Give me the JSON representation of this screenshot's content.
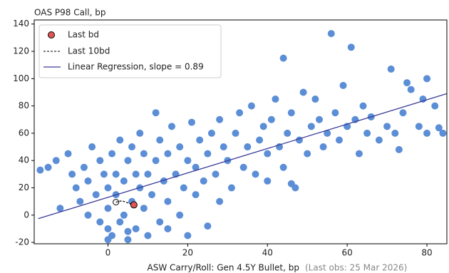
{
  "chart_data": {
    "type": "scatter",
    "title": "OAS P98 Call, bp",
    "x_label": "ASW Carry/Roll: Gen 4.5Y Bullet, bp",
    "note": "(Last obs: 25 Mar 2026)",
    "color": "#5b8ed6",
    "x": [
      -17,
      -15,
      -13,
      -12,
      -10,
      -9,
      -8,
      -7,
      -6,
      -5,
      -5,
      -4,
      -3,
      -2,
      -2,
      -1,
      0,
      0,
      0,
      1,
      1,
      2,
      2,
      3,
      3,
      4,
      4,
      5,
      5,
      6,
      6,
      7,
      7,
      8,
      8,
      9,
      9,
      10,
      10,
      11,
      12,
      12,
      13,
      13,
      14,
      15,
      15,
      16,
      17,
      18,
      18,
      19,
      20,
      21,
      22,
      22,
      23,
      24,
      25,
      26,
      27,
      28,
      28,
      29,
      30,
      31,
      32,
      33,
      34,
      35,
      36,
      37,
      38,
      39,
      40,
      40,
      41,
      42,
      43,
      44,
      44,
      45,
      46,
      47,
      48,
      49,
      50,
      51,
      52,
      53,
      54,
      55,
      56,
      57,
      58,
      59,
      60,
      61,
      62,
      63,
      64,
      65,
      66,
      68,
      70,
      71,
      72,
      73,
      74,
      75,
      76,
      78,
      79,
      80,
      82,
      83,
      84,
      80,
      0,
      5,
      15,
      25,
      46,
      20
    ],
    "values": [
      33,
      35,
      40,
      5,
      45,
      30,
      20,
      10,
      35,
      0,
      25,
      50,
      15,
      -5,
      40,
      30,
      5,
      20,
      -10,
      45,
      -15,
      15,
      30,
      -5,
      55,
      25,
      0,
      40,
      -18,
      10,
      50,
      -10,
      30,
      20,
      60,
      5,
      45,
      -15,
      30,
      15,
      75,
      40,
      -5,
      55,
      25,
      10,
      45,
      65,
      30,
      0,
      50,
      20,
      40,
      68,
      15,
      35,
      55,
      25,
      45,
      60,
      30,
      70,
      10,
      50,
      40,
      20,
      60,
      75,
      35,
      50,
      80,
      30,
      55,
      65,
      45,
      25,
      70,
      85,
      50,
      115,
      35,
      60,
      75,
      20,
      55,
      90,
      45,
      65,
      85,
      70,
      50,
      60,
      133,
      75,
      55,
      95,
      65,
      123,
      70,
      45,
      80,
      60,
      72,
      55,
      65,
      107,
      60,
      48,
      75,
      97,
      92,
      65,
      85,
      60,
      80,
      64,
      60,
      100,
      -18,
      -12,
      -10,
      -8,
      23,
      -15
    ],
    "last_bd": {
      "name": "Last bd",
      "x": 6.5,
      "y": 7.5,
      "color": "#e05555"
    },
    "last_10bd": {
      "name": "Last 10bd",
      "x": [
        2,
        3.5,
        5,
        6.5
      ],
      "y": [
        9.5,
        10.5,
        9,
        7.5
      ]
    },
    "regression": {
      "name": "Linear Regression, slope = 0.89",
      "x": [
        -17.5,
        85
      ],
      "y": [
        -2.6,
        89
      ],
      "color": "#3b3b98"
    },
    "xlim": [
      -18.5,
      85
    ],
    "ylim": [
      -21,
      143
    ],
    "xticks": [
      0,
      20,
      40,
      60,
      80
    ],
    "yticks": [
      -20,
      0,
      20,
      40,
      60,
      80,
      100,
      120,
      140
    ],
    "legend": "upper left"
  }
}
